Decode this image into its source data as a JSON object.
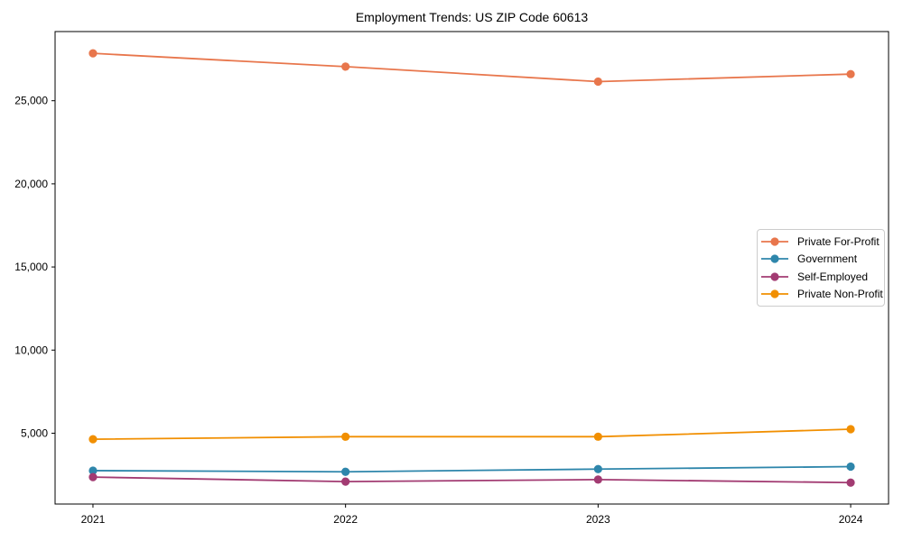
{
  "figure": {
    "background": "#ffffff",
    "spine_color": "#000000"
  },
  "chart_data": {
    "type": "line",
    "title": "Employment Trends: US ZIP Code 60613",
    "x": [
      2021,
      2022,
      2023,
      2024
    ],
    "x_tick_labels": [
      "2021",
      "2022",
      "2023",
      "2024"
    ],
    "y_ticks": [
      {
        "value": 5000,
        "label": "5,000"
      },
      {
        "value": 10000,
        "label": "10,000"
      },
      {
        "value": 15000,
        "label": "15,000"
      },
      {
        "value": 20000,
        "label": "20,000"
      },
      {
        "value": 25000,
        "label": "25,000"
      }
    ],
    "xlim": [
      2020.85,
      2024.15
    ],
    "ylim": [
      740,
      29160
    ],
    "grid": false,
    "legend_position": "center-right",
    "series": [
      {
        "name": "Private For-Profit",
        "color": "#e8764c",
        "values": [
          27850,
          27050,
          26150,
          26600
        ]
      },
      {
        "name": "Government",
        "color": "#2e86ab",
        "values": [
          2750,
          2680,
          2840,
          2990
        ]
      },
      {
        "name": "Self-Employed",
        "color": "#a23b72",
        "values": [
          2360,
          2090,
          2210,
          2030
        ]
      },
      {
        "name": "Private Non-Profit",
        "color": "#f18f01",
        "values": [
          4640,
          4790,
          4790,
          5240
        ]
      }
    ]
  }
}
